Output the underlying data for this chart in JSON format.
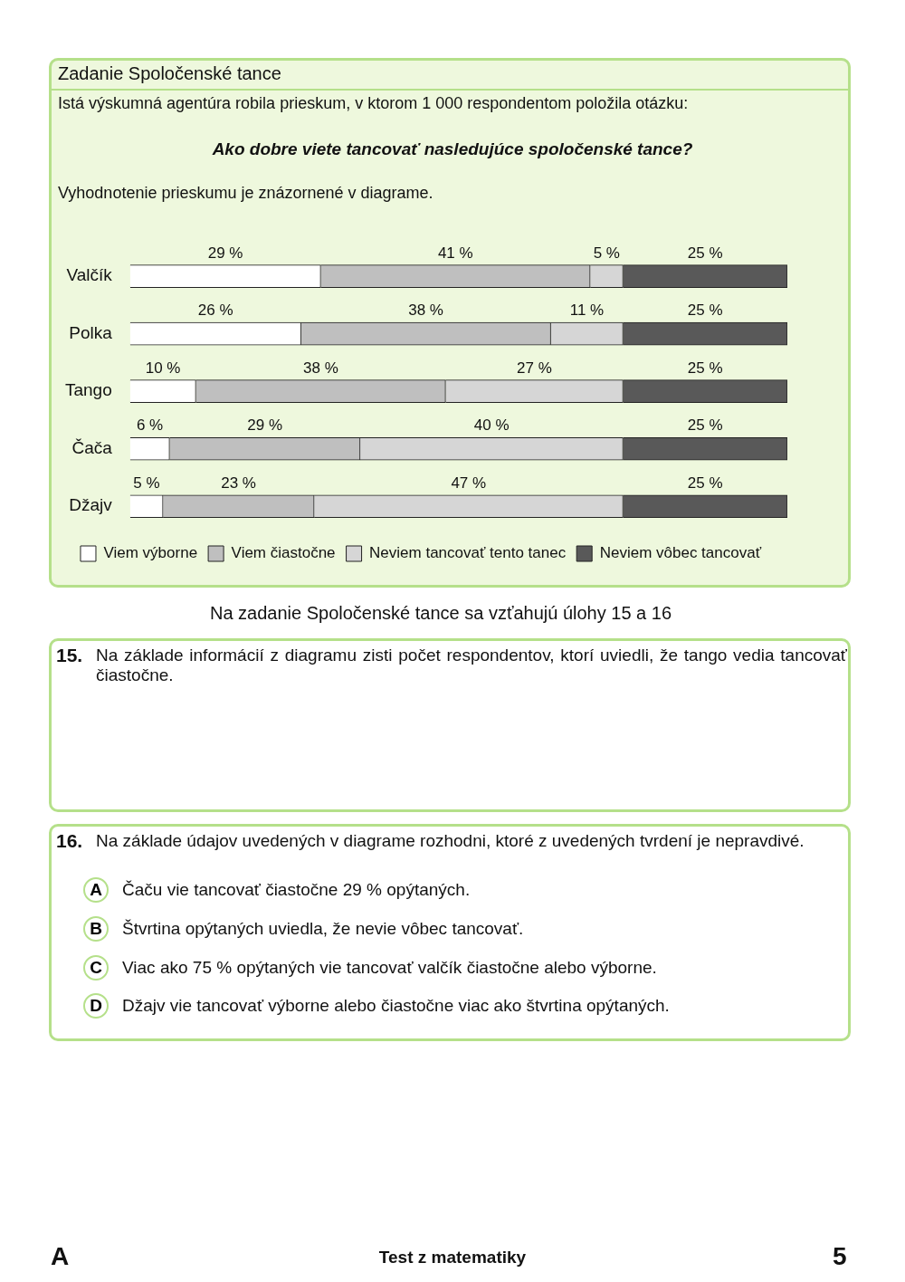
{
  "chart_data": {
    "type": "bar",
    "orientation": "horizontal",
    "stacked": true,
    "title": "Zadanie Spoločenské tance",
    "categories": [
      "Valčík",
      "Polka",
      "Tango",
      "Čača",
      "Džajv"
    ],
    "series": [
      {
        "name": "Viem výborne",
        "color": "#ffffff",
        "values": [
          29,
          26,
          10,
          6,
          5
        ],
        "value_labels": [
          "29 %",
          "26 %",
          "10 %",
          "6 %",
          "5 %"
        ]
      },
      {
        "name": "Viem čiastočne",
        "color": "#bfbfbf",
        "values": [
          41,
          38,
          38,
          29,
          23
        ],
        "value_labels": [
          "41 %",
          "38 %",
          "38 %",
          "29 %",
          "23 %"
        ]
      },
      {
        "name": "Neviem tancovať tento tanec",
        "color": "#d6d6d6",
        "values": [
          5,
          11,
          27,
          40,
          47
        ],
        "value_labels": [
          "5 %",
          "11 %",
          "27 %",
          "40 %",
          "47 %"
        ]
      },
      {
        "name": "Neviem vôbec tancovať",
        "color": "#595959",
        "values": [
          25,
          25,
          25,
          25,
          25
        ],
        "value_labels": [
          "25 %",
          "25 %",
          "25 %",
          "25 %",
          "25 %"
        ]
      }
    ],
    "xlim": [
      0,
      100
    ],
    "tick_labels": "y",
    "legend": "bottom",
    "annotations": [
      "Istá výskumná agentúra robila prieskum, v ktorom 1 000 respondentom položila otázku:",
      "Ako dobre viete tancovať nasledujúce spoločenské tance?",
      "Vyhodnotenie prieskumu je znázornené v diagrame.",
      "Na zadanie Spoločenské tance sa vzťahujú úlohy 15 a 16",
      "15.",
      "Na základe informácií z diagramu zisti počet respondentov, ktorí uviedli, že tango vedia tancovať čiastočne.",
      "16.",
      "Na základe údajov uvedených v diagrame rozhodni, ktoré z uvedených tvrdení je nepravdivé.",
      "A",
      "Čaču vie tancovať čiastočne 29 % opýtaných.",
      "B",
      "Štvrtina opýtaných uviedla, že nevie vôbec tancovať.",
      "C",
      "Viac ako 75 % opýtaných vie tancovať valčík čiastočne alebo výborne.",
      "D",
      "Džajv vie tancovať výborne alebo čiastočne viac ako štvrtina opýtaných.",
      "A",
      "Test z matematiky",
      "5"
    ]
  }
}
